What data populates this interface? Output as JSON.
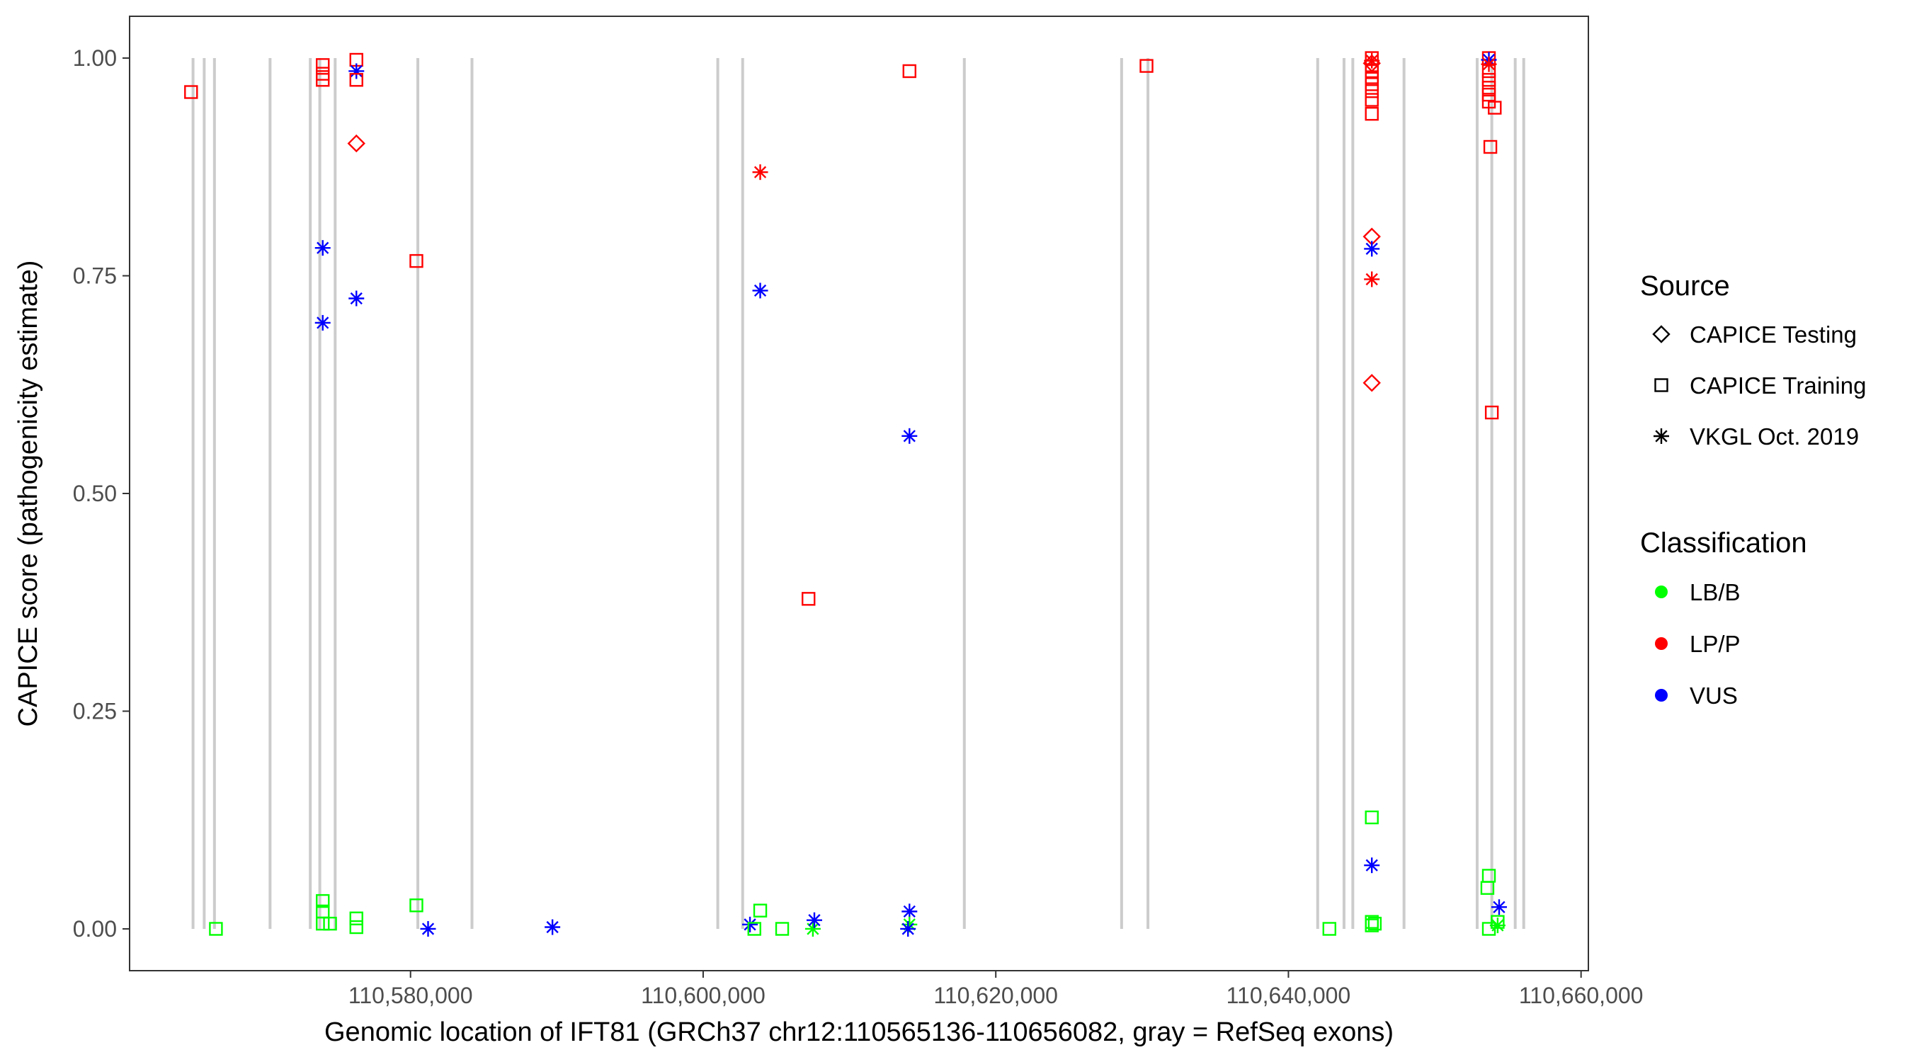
{
  "chart_data": {
    "type": "scatter",
    "title": "",
    "xlabel": "Genomic location of IFT81 (GRCh37 chr12:110565136-110656082, gray = RefSeq exons)",
    "ylabel": "CAPICE score (pathogenicity estimate)",
    "xlim": [
      110560800,
      110660500
    ],
    "ylim": [
      -0.048,
      1.048
    ],
    "x_ticks": [
      110580000,
      110600000,
      110620000,
      110640000,
      110660000
    ],
    "x_tick_labels": [
      "110,580,000",
      "110,600,000",
      "110,620,000",
      "110,640,000",
      "110,660,000"
    ],
    "y_ticks": [
      0,
      0.25,
      0.5,
      0.75,
      1.0
    ],
    "y_tick_labels": [
      "0.00",
      "0.25",
      "0.50",
      "0.75",
      "1.00"
    ],
    "grid": false,
    "exon_lines": [
      {
        "x": 110565136
      },
      {
        "x": 110565900
      },
      {
        "x": 110566600
      },
      {
        "x": 110570400
      },
      {
        "x": 110573150
      },
      {
        "x": 110573800
      },
      {
        "x": 110574850
      },
      {
        "x": 110580500
      },
      {
        "x": 110584200
      },
      {
        "x": 110601000
      },
      {
        "x": 110602700
      },
      {
        "x": 110617850
      },
      {
        "x": 110628600
      },
      {
        "x": 110630400
      },
      {
        "x": 110642000
      },
      {
        "x": 110643800
      },
      {
        "x": 110644400
      },
      {
        "x": 110647900
      },
      {
        "x": 110652900
      },
      {
        "x": 110653900
      },
      {
        "x": 110655500
      },
      {
        "x": 110656082
      }
    ],
    "legend_position": "right",
    "legend": {
      "source_title": "Source",
      "source_items": [
        {
          "label": "CAPICE Testing",
          "shape": "diamond"
        },
        {
          "label": "CAPICE Training",
          "shape": "square"
        },
        {
          "label": "VKGL Oct. 2019",
          "shape": "asterisk"
        }
      ],
      "class_title": "Classification",
      "class_items": [
        {
          "label": "LB/B",
          "color": "#00ff00"
        },
        {
          "label": "LP/P",
          "color": "#ff0000"
        },
        {
          "label": "VUS",
          "color": "#0000ff"
        }
      ]
    },
    "colors": {
      "LB/B": "#00ff00",
      "LP/P": "#ff0000",
      "VUS": "#0000ff",
      "exon": "#cccccc"
    },
    "points": [
      {
        "x": 110565000,
        "y": 0.961,
        "source": "CAPICE Training",
        "class": "LP/P"
      },
      {
        "x": 110566700,
        "y": 0.0,
        "source": "CAPICE Training",
        "class": "LB/B"
      },
      {
        "x": 110574000,
        "y": 0.992,
        "source": "CAPICE Training",
        "class": "LP/P"
      },
      {
        "x": 110574000,
        "y": 0.982,
        "source": "CAPICE Training",
        "class": "LP/P"
      },
      {
        "x": 110574000,
        "y": 0.975,
        "source": "CAPICE Training",
        "class": "LP/P"
      },
      {
        "x": 110574000,
        "y": 0.782,
        "source": "VKGL Oct. 2019",
        "class": "VUS"
      },
      {
        "x": 110574000,
        "y": 0.696,
        "source": "VKGL Oct. 2019",
        "class": "VUS"
      },
      {
        "x": 110574000,
        "y": 0.032,
        "source": "CAPICE Training",
        "class": "LB/B"
      },
      {
        "x": 110574000,
        "y": 0.02,
        "source": "CAPICE Training",
        "class": "LB/B"
      },
      {
        "x": 110574000,
        "y": 0.006,
        "source": "CAPICE Training",
        "class": "LB/B"
      },
      {
        "x": 110574500,
        "y": 0.006,
        "source": "CAPICE Training",
        "class": "LB/B"
      },
      {
        "x": 110576300,
        "y": 0.998,
        "source": "CAPICE Training",
        "class": "LP/P"
      },
      {
        "x": 110576300,
        "y": 0.985,
        "source": "VKGL Oct. 2019",
        "class": "VUS"
      },
      {
        "x": 110576300,
        "y": 0.975,
        "source": "CAPICE Training",
        "class": "LP/P"
      },
      {
        "x": 110576300,
        "y": 0.902,
        "source": "CAPICE Testing",
        "class": "LP/P"
      },
      {
        "x": 110576300,
        "y": 0.724,
        "source": "VKGL Oct. 2019",
        "class": "VUS"
      },
      {
        "x": 110576300,
        "y": 0.012,
        "source": "CAPICE Training",
        "class": "LB/B"
      },
      {
        "x": 110576300,
        "y": 0.002,
        "source": "CAPICE Training",
        "class": "LB/B"
      },
      {
        "x": 110580400,
        "y": 0.767,
        "source": "CAPICE Training",
        "class": "LP/P"
      },
      {
        "x": 110580400,
        "y": 0.027,
        "source": "CAPICE Training",
        "class": "LB/B"
      },
      {
        "x": 110581200,
        "y": 0.0,
        "source": "VKGL Oct. 2019",
        "class": "VUS"
      },
      {
        "x": 110589700,
        "y": 0.002,
        "source": "VKGL Oct. 2019",
        "class": "VUS"
      },
      {
        "x": 110603200,
        "y": 0.005,
        "source": "VKGL Oct. 2019",
        "class": "VUS"
      },
      {
        "x": 110603500,
        "y": 0.0,
        "source": "CAPICE Training",
        "class": "LB/B"
      },
      {
        "x": 110603900,
        "y": 0.869,
        "source": "VKGL Oct. 2019",
        "class": "LP/P"
      },
      {
        "x": 110603900,
        "y": 0.733,
        "source": "VKGL Oct. 2019",
        "class": "VUS"
      },
      {
        "x": 110603900,
        "y": 0.021,
        "source": "CAPICE Training",
        "class": "LB/B"
      },
      {
        "x": 110605400,
        "y": 0.0,
        "source": "CAPICE Training",
        "class": "LB/B"
      },
      {
        "x": 110607200,
        "y": 0.379,
        "source": "CAPICE Training",
        "class": "LP/P"
      },
      {
        "x": 110607500,
        "y": 0.0,
        "source": "VKGL Oct. 2019",
        "class": "LB/B"
      },
      {
        "x": 110607600,
        "y": 0.01,
        "source": "VKGL Oct. 2019",
        "class": "VUS"
      },
      {
        "x": 110614100,
        "y": 0.985,
        "source": "CAPICE Training",
        "class": "LP/P"
      },
      {
        "x": 110614100,
        "y": 0.566,
        "source": "VKGL Oct. 2019",
        "class": "VUS"
      },
      {
        "x": 110614100,
        "y": 0.02,
        "source": "VKGL Oct. 2019",
        "class": "VUS"
      },
      {
        "x": 110614100,
        "y": 0.005,
        "source": "VKGL Oct. 2019",
        "class": "LB/B"
      },
      {
        "x": 110614000,
        "y": 0.0,
        "source": "VKGL Oct. 2019",
        "class": "VUS"
      },
      {
        "x": 110630300,
        "y": 0.991,
        "source": "CAPICE Training",
        "class": "LP/P"
      },
      {
        "x": 110642800,
        "y": 0.0,
        "source": "CAPICE Training",
        "class": "LB/B"
      },
      {
        "x": 110645700,
        "y": 1.0,
        "source": "CAPICE Training",
        "class": "LP/P"
      },
      {
        "x": 110645700,
        "y": 0.997,
        "source": "VKGL Oct. 2019",
        "class": "LP/P"
      },
      {
        "x": 110645700,
        "y": 0.994,
        "source": "CAPICE Testing",
        "class": "LP/P"
      },
      {
        "x": 110645700,
        "y": 0.99,
        "source": "CAPICE Training",
        "class": "LP/P"
      },
      {
        "x": 110645700,
        "y": 0.985,
        "source": "CAPICE Training",
        "class": "LP/P"
      },
      {
        "x": 110645700,
        "y": 0.978,
        "source": "CAPICE Training",
        "class": "LP/P"
      },
      {
        "x": 110645700,
        "y": 0.97,
        "source": "CAPICE Training",
        "class": "LP/P"
      },
      {
        "x": 110645700,
        "y": 0.962,
        "source": "CAPICE Training",
        "class": "LP/P"
      },
      {
        "x": 110645700,
        "y": 0.952,
        "source": "CAPICE Training",
        "class": "LP/P"
      },
      {
        "x": 110645700,
        "y": 0.936,
        "source": "CAPICE Training",
        "class": "LP/P"
      },
      {
        "x": 110645700,
        "y": 0.795,
        "source": "CAPICE Testing",
        "class": "LP/P"
      },
      {
        "x": 110645700,
        "y": 0.781,
        "source": "VKGL Oct. 2019",
        "class": "VUS"
      },
      {
        "x": 110645700,
        "y": 0.746,
        "source": "VKGL Oct. 2019",
        "class": "LP/P"
      },
      {
        "x": 110645700,
        "y": 0.627,
        "source": "CAPICE Testing",
        "class": "LP/P"
      },
      {
        "x": 110645700,
        "y": 0.128,
        "source": "CAPICE Training",
        "class": "LB/B"
      },
      {
        "x": 110645700,
        "y": 0.073,
        "source": "VKGL Oct. 2019",
        "class": "VUS"
      },
      {
        "x": 110645700,
        "y": 0.008,
        "source": "CAPICE Training",
        "class": "LB/B"
      },
      {
        "x": 110645700,
        "y": 0.004,
        "source": "CAPICE Training",
        "class": "LB/B"
      },
      {
        "x": 110645900,
        "y": 0.006,
        "source": "CAPICE Training",
        "class": "LB/B"
      },
      {
        "x": 110653700,
        "y": 1.0,
        "source": "CAPICE Training",
        "class": "LP/P"
      },
      {
        "x": 110653700,
        "y": 0.998,
        "source": "VKGL Oct. 2019",
        "class": "VUS"
      },
      {
        "x": 110653700,
        "y": 0.993,
        "source": "VKGL Oct. 2019",
        "class": "LP/P"
      },
      {
        "x": 110653700,
        "y": 0.985,
        "source": "CAPICE Training",
        "class": "LP/P"
      },
      {
        "x": 110653700,
        "y": 0.975,
        "source": "CAPICE Training",
        "class": "LP/P"
      },
      {
        "x": 110653700,
        "y": 0.966,
        "source": "CAPICE Training",
        "class": "LP/P"
      },
      {
        "x": 110653700,
        "y": 0.958,
        "source": "CAPICE Training",
        "class": "LP/P"
      },
      {
        "x": 110653700,
        "y": 0.95,
        "source": "CAPICE Training",
        "class": "LP/P"
      },
      {
        "x": 110654100,
        "y": 0.943,
        "source": "CAPICE Training",
        "class": "LP/P"
      },
      {
        "x": 110653800,
        "y": 0.898,
        "source": "CAPICE Training",
        "class": "LP/P"
      },
      {
        "x": 110653900,
        "y": 0.593,
        "source": "CAPICE Training",
        "class": "LP/P"
      },
      {
        "x": 110653700,
        "y": 0.061,
        "source": "CAPICE Training",
        "class": "LB/B"
      },
      {
        "x": 110653600,
        "y": 0.047,
        "source": "CAPICE Training",
        "class": "LB/B"
      },
      {
        "x": 110654400,
        "y": 0.025,
        "source": "VKGL Oct. 2019",
        "class": "VUS"
      },
      {
        "x": 110654300,
        "y": 0.008,
        "source": "CAPICE Training",
        "class": "LB/B"
      },
      {
        "x": 110654300,
        "y": 0.004,
        "source": "VKGL Oct. 2019",
        "class": "LB/B"
      },
      {
        "x": 110653700,
        "y": 0.0,
        "source": "CAPICE Training",
        "class": "LB/B"
      }
    ]
  }
}
